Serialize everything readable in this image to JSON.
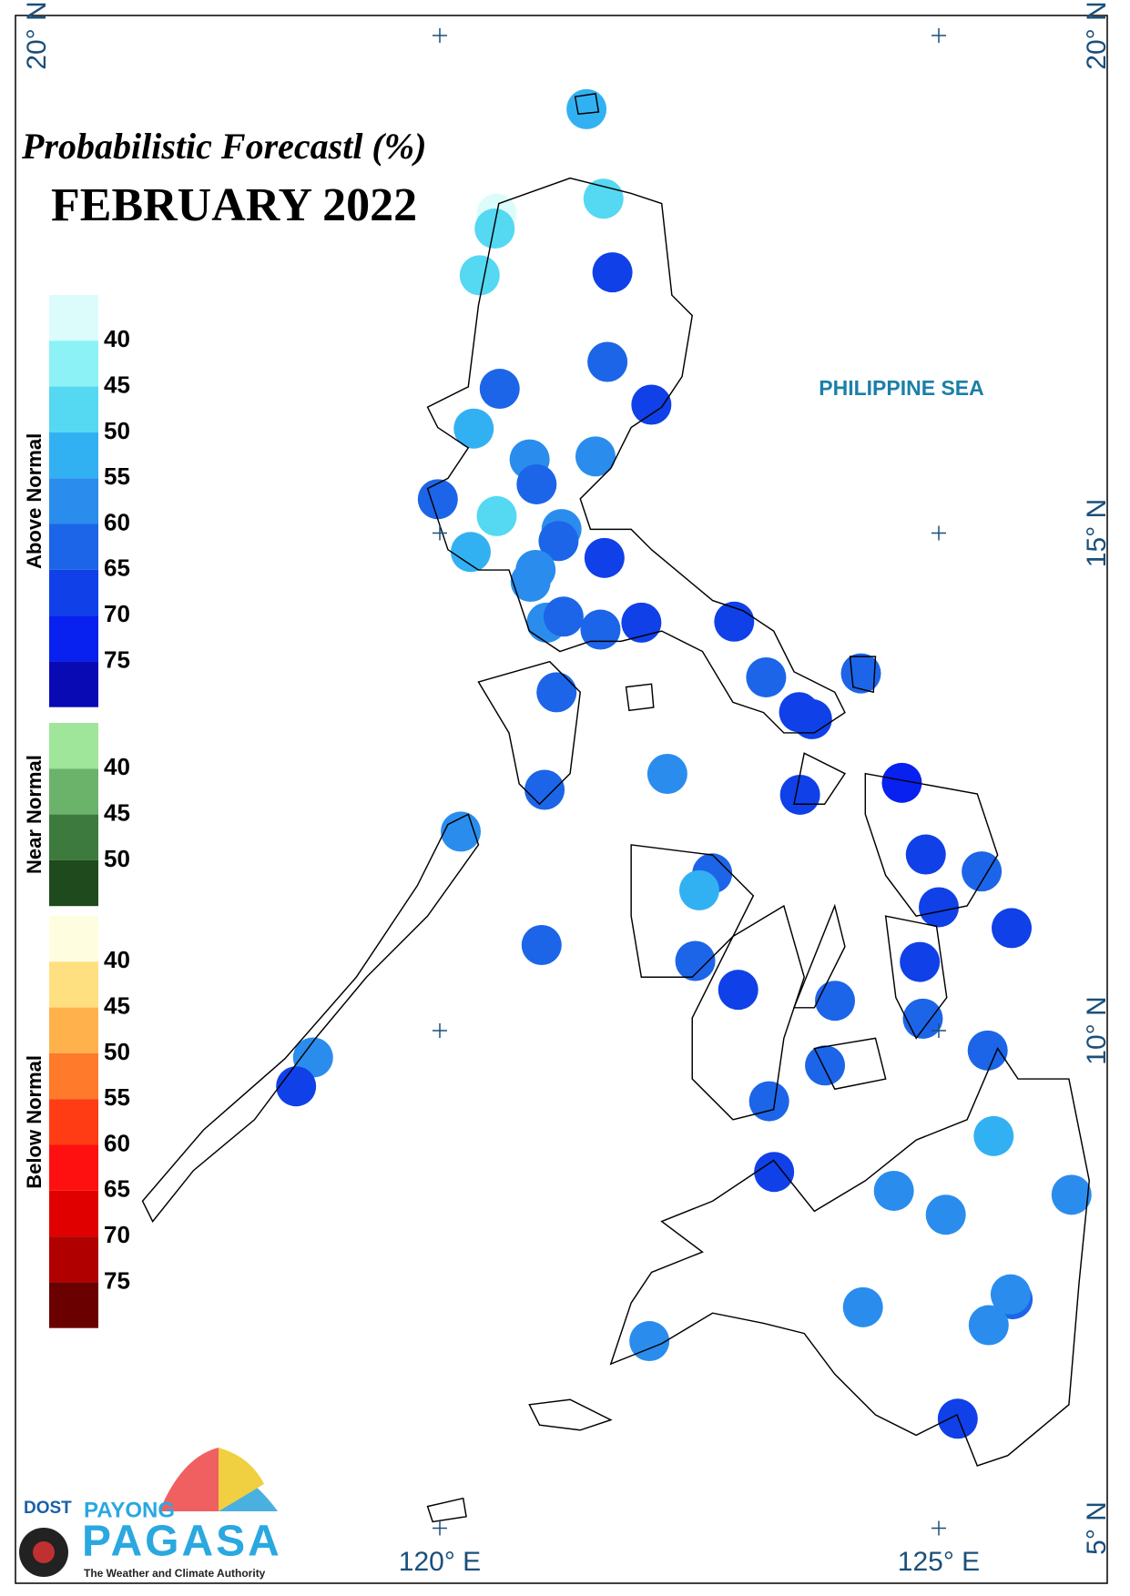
{
  "title": "Probabilistic Forecastl (%)",
  "subtitle": "FEBRUARY 2022",
  "sea_label": "PHILIPPINE SEA",
  "lon_ticks": [
    {
      "value": 120,
      "label": "120° E"
    },
    {
      "value": 125,
      "label": "125° E"
    }
  ],
  "lat_ticks": [
    {
      "value": 20,
      "label": "20° N"
    },
    {
      "value": 15,
      "label": "15° N"
    },
    {
      "value": 10,
      "label": "10° N"
    },
    {
      "value": 5,
      "label": "5° N"
    }
  ],
  "legend": [
    {
      "name": "Above Normal",
      "colors": [
        "#dcfcfc",
        "#8cf2f5",
        "#55d8f2",
        "#32b1f2",
        "#2a8ded",
        "#1c65e8",
        "#1040e8",
        "#0820f0",
        "#0a0ab4"
      ],
      "ticks": [
        40,
        45,
        50,
        55,
        60,
        65,
        70,
        75
      ]
    },
    {
      "name": "Near Normal",
      "colors": [
        "#a0e69a",
        "#6bb36b",
        "#3d7a3d",
        "#1e4a1e"
      ],
      "ticks": [
        40,
        45,
        50
      ]
    },
    {
      "name": "Below Normal",
      "colors": [
        "#fffde0",
        "#ffe080",
        "#ffb24c",
        "#ff7a2a",
        "#ff3c14",
        "#ff1010",
        "#e00000",
        "#b00000",
        "#6a0000"
      ],
      "ticks": [
        40,
        45,
        50,
        55,
        60,
        65,
        70,
        75
      ]
    }
  ],
  "stations": [
    {
      "lon": 121.47,
      "lat": 19.26,
      "value": 50
    },
    {
      "lon": 121.64,
      "lat": 18.36,
      "value": 45
    },
    {
      "lon": 120.57,
      "lat": 18.21,
      "value": 35
    },
    {
      "lon": 120.55,
      "lat": 18.06,
      "value": 45
    },
    {
      "lon": 120.4,
      "lat": 17.59,
      "value": 45
    },
    {
      "lon": 121.73,
      "lat": 17.62,
      "value": 65
    },
    {
      "lon": 121.68,
      "lat": 16.72,
      "value": 60
    },
    {
      "lon": 120.6,
      "lat": 16.45,
      "value": 60
    },
    {
      "lon": 122.12,
      "lat": 16.29,
      "value": 65
    },
    {
      "lon": 120.34,
      "lat": 16.05,
      "value": 50
    },
    {
      "lon": 121.56,
      "lat": 15.77,
      "value": 55
    },
    {
      "lon": 120.9,
      "lat": 15.74,
      "value": 55
    },
    {
      "lon": 120.97,
      "lat": 15.49,
      "value": 60
    },
    {
      "lon": 119.98,
      "lat": 15.34,
      "value": 60
    },
    {
      "lon": 120.57,
      "lat": 15.17,
      "value": 45
    },
    {
      "lon": 120.31,
      "lat": 14.81,
      "value": 50
    },
    {
      "lon": 121.22,
      "lat": 15.04,
      "value": 55
    },
    {
      "lon": 121.19,
      "lat": 14.92,
      "value": 60
    },
    {
      "lon": 121.65,
      "lat": 14.75,
      "value": 65
    },
    {
      "lon": 120.96,
      "lat": 14.63,
      "value": 55
    },
    {
      "lon": 120.91,
      "lat": 14.51,
      "value": 55
    },
    {
      "lon": 121.07,
      "lat": 14.1,
      "value": 55
    },
    {
      "lon": 121.24,
      "lat": 14.16,
      "value": 60
    },
    {
      "lon": 121.61,
      "lat": 14.03,
      "value": 60
    },
    {
      "lon": 122.02,
      "lat": 14.1,
      "value": 65
    },
    {
      "lon": 122.95,
      "lat": 14.11,
      "value": 65
    },
    {
      "lon": 123.27,
      "lat": 13.55,
      "value": 60
    },
    {
      "lon": 124.22,
      "lat": 13.59,
      "value": 60
    },
    {
      "lon": 123.6,
      "lat": 13.2,
      "value": 65
    },
    {
      "lon": 123.73,
      "lat": 13.13,
      "value": 65
    },
    {
      "lon": 121.17,
      "lat": 13.4,
      "value": 60
    },
    {
      "lon": 122.28,
      "lat": 12.58,
      "value": 55
    },
    {
      "lon": 121.05,
      "lat": 12.42,
      "value": 60
    },
    {
      "lon": 123.61,
      "lat": 12.37,
      "value": 65
    },
    {
      "lon": 124.63,
      "lat": 12.49,
      "value": 70
    },
    {
      "lon": 120.21,
      "lat": 12.0,
      "value": 55
    },
    {
      "lon": 124.87,
      "lat": 11.77,
      "value": 65
    },
    {
      "lon": 125.43,
      "lat": 11.6,
      "value": 60
    },
    {
      "lon": 122.73,
      "lat": 11.58,
      "value": 60
    },
    {
      "lon": 122.6,
      "lat": 11.41,
      "value": 50
    },
    {
      "lon": 125.0,
      "lat": 11.24,
      "value": 65
    },
    {
      "lon": 125.73,
      "lat": 11.03,
      "value": 65
    },
    {
      "lon": 121.02,
      "lat": 10.86,
      "value": 60
    },
    {
      "lon": 122.56,
      "lat": 10.7,
      "value": 60
    },
    {
      "lon": 124.81,
      "lat": 10.69,
      "value": 65
    },
    {
      "lon": 122.99,
      "lat": 10.41,
      "value": 65
    },
    {
      "lon": 123.96,
      "lat": 10.3,
      "value": 60
    },
    {
      "lon": 124.84,
      "lat": 10.12,
      "value": 60
    },
    {
      "lon": 118.73,
      "lat": 9.73,
      "value": 55
    },
    {
      "lon": 118.56,
      "lat": 9.44,
      "value": 65
    },
    {
      "lon": 123.86,
      "lat": 9.65,
      "value": 60
    },
    {
      "lon": 125.49,
      "lat": 9.8,
      "value": 60
    },
    {
      "lon": 123.3,
      "lat": 9.29,
      "value": 60
    },
    {
      "lon": 125.55,
      "lat": 8.94,
      "value": 50
    },
    {
      "lon": 123.35,
      "lat": 8.58,
      "value": 65
    },
    {
      "lon": 124.55,
      "lat": 8.39,
      "value": 55
    },
    {
      "lon": 125.07,
      "lat": 8.15,
      "value": 55
    },
    {
      "lon": 126.33,
      "lat": 8.35,
      "value": 55
    },
    {
      "lon": 124.24,
      "lat": 7.22,
      "value": 55
    },
    {
      "lon": 125.74,
      "lat": 7.3,
      "value": 60
    },
    {
      "lon": 125.72,
      "lat": 7.35,
      "value": 55
    },
    {
      "lon": 125.5,
      "lat": 7.04,
      "value": 55
    },
    {
      "lon": 122.1,
      "lat": 6.88,
      "value": 55
    },
    {
      "lon": 125.19,
      "lat": 6.1,
      "value": 65
    }
  ],
  "logo": {
    "agency": "DOST",
    "brand_top": "PAYONG",
    "brand": "PAGASA",
    "tagline": "The Weather and Climate Authority"
  }
}
